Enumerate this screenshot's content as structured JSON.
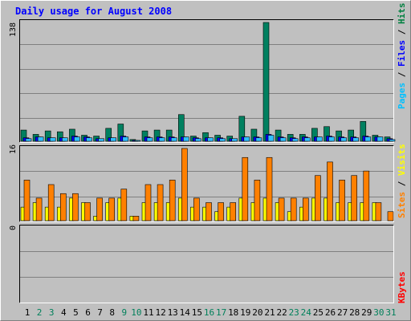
{
  "chart_data": [
    {
      "type": "bar",
      "title": "Daily usage for August 2008",
      "panel": "hits",
      "ymax_label": "138",
      "ylim": [
        0,
        138
      ],
      "legend": [
        {
          "text": "Pages",
          "color": "#00c0ff"
        },
        {
          "text": "Files",
          "color": "#0000ff"
        },
        {
          "text": "Hits",
          "color": "#008040"
        }
      ],
      "separator": " / ",
      "days": [
        1,
        2,
        3,
        4,
        5,
        6,
        7,
        8,
        9,
        10,
        11,
        12,
        13,
        14,
        15,
        16,
        17,
        18,
        19,
        20,
        21,
        22,
        23,
        24,
        25,
        26,
        27,
        28,
        29,
        30,
        31
      ],
      "weekend_days": [
        2,
        3,
        9,
        10,
        16,
        17,
        23,
        24,
        30,
        31
      ],
      "series": [
        {
          "name": "Hits",
          "color": "#008060",
          "values": [
            13,
            8,
            12,
            11,
            14,
            7,
            6,
            15,
            20,
            2,
            12,
            13,
            13,
            31,
            6,
            10,
            7,
            6,
            29,
            14,
            138,
            13,
            8,
            8,
            15,
            17,
            12,
            13,
            23,
            7,
            5
          ]
        },
        {
          "name": "Files",
          "color": "#0000ff",
          "values": [
            4,
            5,
            4,
            4,
            6,
            5,
            3,
            4,
            6,
            1,
            5,
            5,
            5,
            5,
            4,
            4,
            4,
            3,
            5,
            5,
            8,
            5,
            4,
            5,
            5,
            6,
            5,
            5,
            6,
            5,
            3
          ]
        },
        {
          "name": "Pages",
          "color": "#00c0ff",
          "values": [
            3,
            5,
            4,
            4,
            5,
            4,
            3,
            4,
            5,
            1,
            4,
            4,
            4,
            5,
            3,
            4,
            3,
            3,
            5,
            4,
            7,
            4,
            3,
            4,
            5,
            5,
            4,
            4,
            5,
            5,
            2
          ]
        }
      ]
    },
    {
      "type": "bar",
      "panel": "sites",
      "ymax_label": "16",
      "ylim": [
        0,
        16
      ],
      "legend": [
        {
          "text": "Sites",
          "color": "#ff8000"
        },
        {
          "text": "Visits",
          "color": "#ffff00"
        }
      ],
      "separator": " / ",
      "series": [
        {
          "name": "Visits",
          "color": "#ffff00",
          "values": [
            3,
            4,
            3,
            3,
            5,
            4,
            1,
            4,
            5,
            1,
            4,
            4,
            4,
            5,
            3,
            3,
            2,
            3,
            5,
            4,
            5,
            4,
            2,
            3,
            5,
            5,
            4,
            4,
            4,
            4,
            0
          ]
        },
        {
          "name": "Sites",
          "color": "#ff8000",
          "values": [
            9,
            5,
            8,
            6,
            6,
            4,
            5,
            5,
            7,
            1,
            8,
            8,
            9,
            16,
            5,
            4,
            4,
            4,
            14,
            9,
            14,
            5,
            5,
            5,
            10,
            13,
            9,
            10,
            11,
            4,
            2
          ]
        }
      ]
    },
    {
      "type": "bar",
      "panel": "kbytes",
      "ymax_label": "0",
      "ylim": [
        0,
        1
      ],
      "legend": [
        {
          "text": "KBytes",
          "color": "#ff0000"
        }
      ],
      "series": [
        {
          "name": "KBytes",
          "color": "#ff0000",
          "values": [
            0,
            0,
            0,
            0,
            0,
            0,
            0,
            0,
            0,
            0,
            0,
            0,
            0,
            0,
            0,
            0,
            0,
            0,
            0,
            0,
            0,
            0,
            0,
            0,
            0,
            0,
            0,
            0,
            0,
            0,
            0
          ]
        }
      ]
    }
  ]
}
